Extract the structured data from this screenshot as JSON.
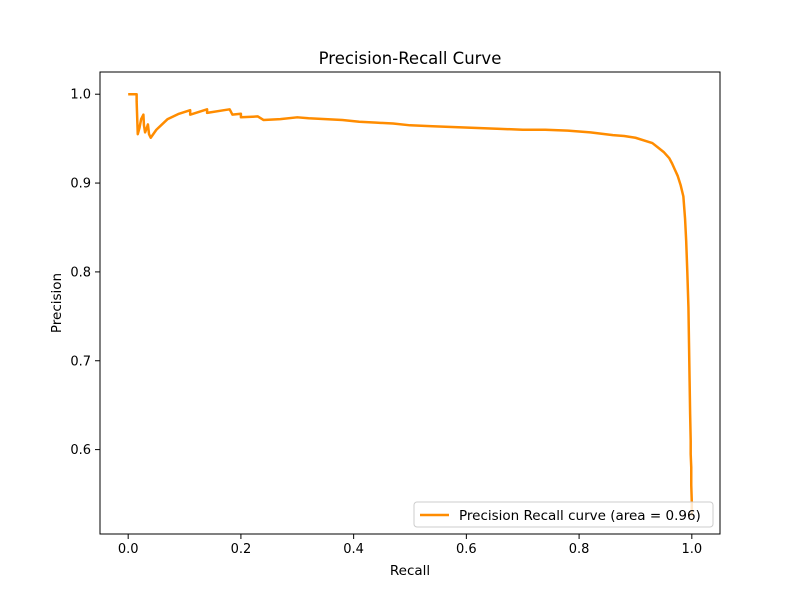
{
  "chart_data": {
    "type": "line",
    "title": "Precision-Recall Curve",
    "xlabel": "Recall",
    "ylabel": "Precision",
    "xlim": [
      -0.05,
      1.05
    ],
    "ylim": [
      0.505,
      1.025
    ],
    "xticks": [
      0.0,
      0.2,
      0.4,
      0.6,
      0.8,
      1.0
    ],
    "xtick_labels": [
      "0.0",
      "0.2",
      "0.4",
      "0.6",
      "0.8",
      "1.0"
    ],
    "yticks": [
      0.6,
      0.7,
      0.8,
      0.9,
      1.0
    ],
    "ytick_labels": [
      "0.6",
      "0.7",
      "0.8",
      "0.9",
      "1.0"
    ],
    "grid": false,
    "legend_position": "lower-right",
    "series": [
      {
        "name": "Precision Recall curve (area = 0.96)",
        "color": "#ff8c00",
        "x": [
          0.0,
          0.015,
          0.015,
          0.017,
          0.02,
          0.023,
          0.027,
          0.028,
          0.03,
          0.033,
          0.035,
          0.037,
          0.04,
          0.05,
          0.07,
          0.09,
          0.11,
          0.11,
          0.14,
          0.14,
          0.17,
          0.18,
          0.185,
          0.2,
          0.2,
          0.23,
          0.24,
          0.27,
          0.3,
          0.32,
          0.35,
          0.38,
          0.41,
          0.44,
          0.47,
          0.5,
          0.54,
          0.58,
          0.62,
          0.66,
          0.7,
          0.74,
          0.78,
          0.82,
          0.86,
          0.88,
          0.9,
          0.92,
          0.93,
          0.94,
          0.95,
          0.96,
          0.965,
          0.97,
          0.975,
          0.98,
          0.985,
          0.988,
          0.99,
          0.992,
          0.994,
          0.995,
          0.996,
          0.997,
          0.998,
          0.998,
          0.999,
          0.999,
          1.0,
          1.0
        ],
        "y": [
          1.0,
          1.0,
          0.992,
          0.955,
          0.962,
          0.972,
          0.977,
          0.965,
          0.957,
          0.962,
          0.966,
          0.955,
          0.951,
          0.96,
          0.972,
          0.978,
          0.982,
          0.977,
          0.983,
          0.979,
          0.982,
          0.983,
          0.977,
          0.978,
          0.974,
          0.975,
          0.971,
          0.972,
          0.974,
          0.973,
          0.972,
          0.971,
          0.969,
          0.968,
          0.967,
          0.965,
          0.964,
          0.963,
          0.962,
          0.961,
          0.96,
          0.96,
          0.959,
          0.957,
          0.954,
          0.953,
          0.951,
          0.947,
          0.945,
          0.94,
          0.935,
          0.928,
          0.922,
          0.915,
          0.908,
          0.898,
          0.885,
          0.86,
          0.835,
          0.8,
          0.76,
          0.72,
          0.68,
          0.64,
          0.61,
          0.595,
          0.58,
          0.56,
          0.54,
          0.525
        ]
      }
    ]
  }
}
